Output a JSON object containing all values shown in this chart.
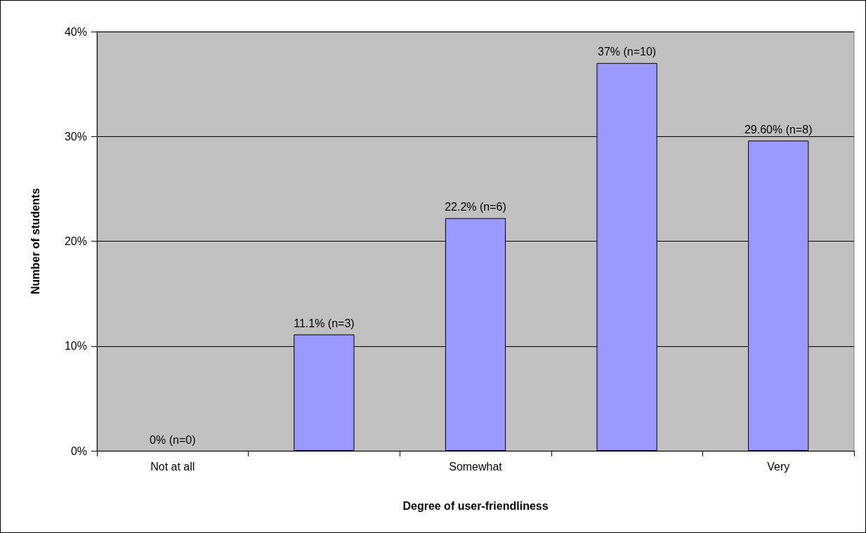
{
  "chart_data": {
    "type": "bar",
    "xlabel": "Degree of user-friendliness",
    "ylabel": "Number of students",
    "categories": [
      "Not at all",
      null,
      "Somewhat",
      null,
      "Very"
    ],
    "values": [
      0,
      11.1,
      22.2,
      37,
      29.6
    ],
    "value_labels": [
      "0% (n=0)",
      "11.1% (n=3)",
      "22.2% (n=6)",
      "37% (n=10)",
      "29.60% (n=8)"
    ],
    "color": "#9999ff",
    "ylim": [
      0,
      40
    ],
    "yticks": [
      {
        "value": 0,
        "label": "0%"
      },
      {
        "value": 10,
        "label": "10%"
      },
      {
        "value": 20,
        "label": "20%"
      },
      {
        "value": 30,
        "label": "30%"
      },
      {
        "value": 40,
        "label": "40%"
      }
    ],
    "grid": "y"
  }
}
